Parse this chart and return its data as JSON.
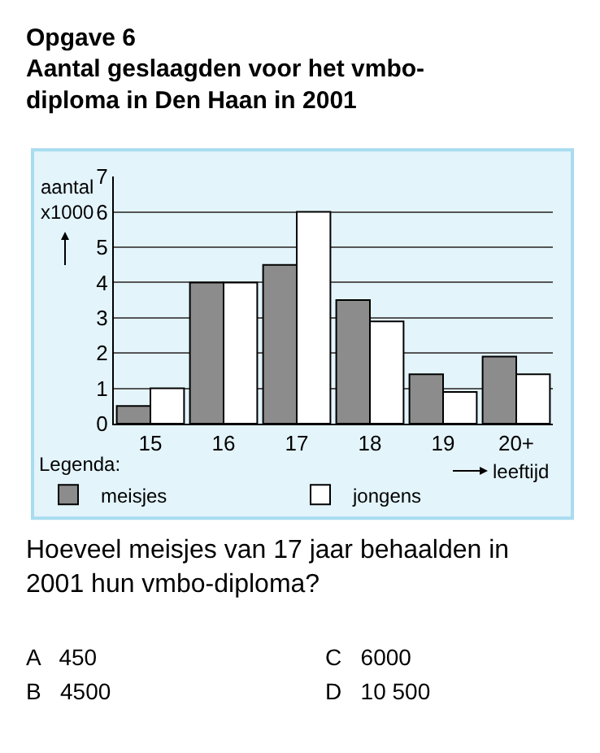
{
  "chart_data": {
    "type": "bar",
    "title": "Opgave 6",
    "subtitle": "Aantal geslaagden voor het vmbo-\ndiploma in Den Haan in 2001",
    "xlabel": "leeftijd",
    "ylabel": "aantal\nx1000",
    "legend_title": "Legenda:",
    "categories": [
      "15",
      "16",
      "17",
      "18",
      "19",
      "20+"
    ],
    "series": [
      {
        "name": "meisjes",
        "color": "#8c8c8c",
        "values": [
          0.5,
          4,
          4.5,
          3.5,
          1.4,
          1.9
        ]
      },
      {
        "name": "jongens",
        "color": "#ffffff",
        "values": [
          1,
          4,
          6,
          2.9,
          0.9,
          1.4
        ]
      }
    ],
    "ylim": [
      0,
      7
    ],
    "yticks": [
      0,
      1,
      2,
      3,
      4,
      5,
      6,
      7
    ],
    "grid": "y",
    "legend": "bottom",
    "annotations": [
      "Hoeveel meisjes van 17 jaar behaalden in\n2001 hun vmbo-diploma?",
      "A   450",
      "B   4500",
      "C   6000",
      "D   10 500"
    ]
  }
}
